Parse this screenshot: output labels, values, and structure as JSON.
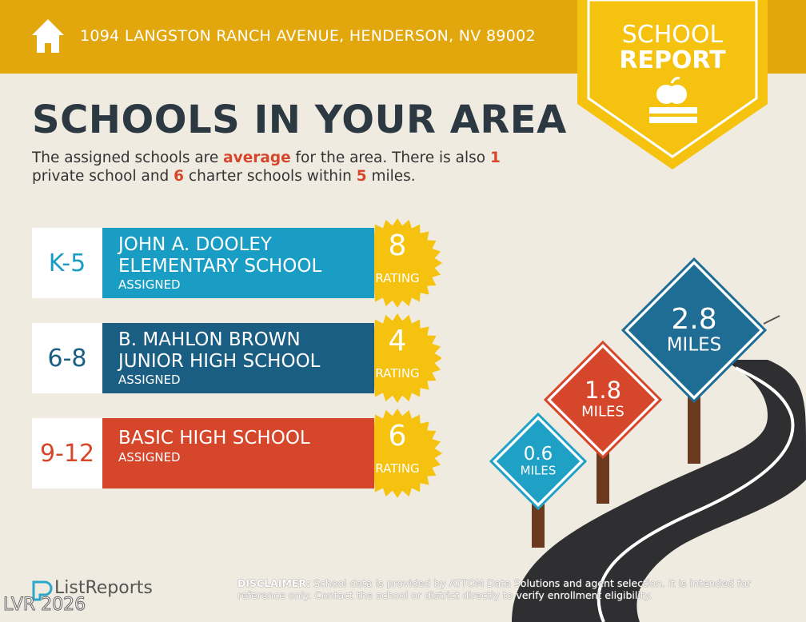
{
  "header": {
    "address": "1094 LANGSTON RANCH AVENUE, HENDERSON, NV 89002"
  },
  "badge": {
    "line1": "SCHOOL",
    "line2": "REPORT"
  },
  "title": "SCHOOLS IN YOUR AREA",
  "description": [
    {
      "text": "The assigned schools are ",
      "highlight": false
    },
    {
      "text": "average",
      "highlight": true
    },
    {
      "text": " for the area. There is also ",
      "highlight": false
    },
    {
      "text": 1,
      "highlight": true
    },
    {
      "text": " private school and ",
      "highlight": false
    },
    {
      "text": 6,
      "highlight": true
    },
    {
      "text": " charter schools within ",
      "highlight": false
    },
    {
      "text": 5,
      "highlight": true
    },
    {
      "text": " miles.",
      "highlight": false
    }
  ],
  "schools": [
    {
      "grades": "K-5",
      "name_line1": "JOHN A. DOOLEY",
      "name_line2": "ELEMENTARY SCHOOL",
      "status": "ASSIGNED",
      "rating": 8,
      "rating_label": "RATING",
      "color": "#1a9dc5"
    },
    {
      "grades": "6-8",
      "name_line1": "B. MAHLON BROWN",
      "name_line2": "JUNIOR HIGH SCHOOL",
      "status": "ASSIGNED",
      "rating": 4,
      "rating_label": "RATING",
      "color": "#1b5e83"
    },
    {
      "grades": "9-12",
      "name_line1": "BASIC HIGH SCHOOL",
      "name_line2": "",
      "status": "ASSIGNED",
      "rating": 6,
      "rating_label": "RATING",
      "color": "#d5462a"
    }
  ],
  "signs": [
    {
      "distance": 0.6,
      "unit": "MILES",
      "color": "#1fa1c6"
    },
    {
      "distance": 1.8,
      "unit": "MILES",
      "color": "#d5462a"
    },
    {
      "distance": 2.8,
      "unit": "MILES",
      "color": "#1f6d94"
    }
  ],
  "footer": {
    "logo": "ListReports",
    "disclaimer_label": "DISCLAIMER:",
    "disclaimer_text": "School data is provided by ATTOM Data Solutions and agent selection. It is intended for reference only. Contact the school or district directly to verify enrollment eligibility.",
    "watermark": "LVR 2026"
  }
}
